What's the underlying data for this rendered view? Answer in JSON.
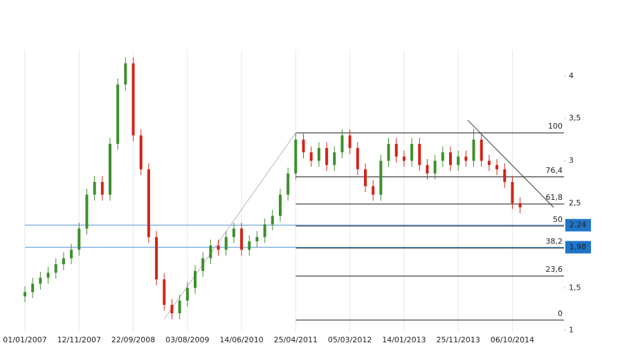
{
  "chart_data": {
    "type": "candlestick",
    "x": [
      0,
      45,
      90,
      135,
      180,
      225,
      270,
      315,
      360,
      405,
      450,
      495,
      540,
      585,
      630,
      675,
      720,
      765,
      810,
      855,
      900,
      945,
      990,
      1035,
      1080,
      1125,
      1170,
      1215,
      1260,
      1305,
      1350,
      1395,
      1440,
      1485,
      1530,
      1575,
      1620,
      1665,
      1710,
      1755,
      1800,
      1845,
      1890,
      1935,
      1980,
      2025,
      2070,
      2115,
      2160,
      2205,
      2250,
      2295,
      2340,
      2385,
      2430,
      2475,
      2520,
      2565,
      2610,
      2655,
      2700,
      2745,
      2790,
      2835,
      2880
    ],
    "open": [
      1.4,
      1.45,
      1.55,
      1.62,
      1.68,
      1.78,
      1.85,
      1.95,
      2.2,
      2.6,
      2.75,
      2.6,
      3.2,
      3.9,
      4.15,
      3.3,
      2.9,
      2.1,
      1.6,
      1.3,
      1.2,
      1.35,
      1.5,
      1.7,
      1.85,
      2.0,
      1.95,
      2.1,
      2.2,
      1.95,
      2.05,
      2.1,
      2.25,
      2.35,
      2.6,
      2.85,
      3.25,
      3.1,
      3.0,
      3.15,
      2.95,
      3.1,
      3.3,
      3.15,
      2.9,
      2.7,
      2.6,
      3.0,
      3.2,
      3.05,
      3.0,
      3.2,
      2.95,
      2.85,
      3.0,
      3.1,
      2.95,
      3.05,
      3.0,
      3.25,
      3.0,
      2.95,
      2.9,
      2.75,
      2.5
    ],
    "high": [
      1.52,
      1.62,
      1.69,
      1.75,
      1.85,
      1.92,
      2.02,
      2.27,
      2.67,
      2.82,
      2.82,
      3.27,
      3.97,
      4.22,
      4.22,
      3.37,
      2.97,
      2.17,
      1.67,
      1.37,
      1.42,
      1.57,
      1.77,
      1.92,
      2.07,
      2.07,
      2.17,
      2.27,
      2.27,
      2.12,
      2.17,
      2.32,
      2.42,
      2.67,
      2.92,
      3.32,
      3.32,
      3.17,
      3.22,
      3.22,
      3.17,
      3.37,
      3.37,
      3.22,
      2.97,
      2.77,
      3.07,
      3.27,
      3.27,
      3.12,
      3.27,
      3.27,
      3.02,
      3.07,
      3.17,
      3.17,
      3.12,
      3.12,
      3.38,
      3.32,
      3.07,
      3.02,
      2.97,
      2.82,
      2.57
    ],
    "low": [
      1.33,
      1.38,
      1.48,
      1.55,
      1.61,
      1.71,
      1.78,
      1.88,
      2.13,
      2.53,
      2.53,
      2.53,
      3.13,
      3.83,
      3.23,
      2.83,
      2.03,
      1.53,
      1.23,
      1.13,
      1.13,
      1.28,
      1.43,
      1.63,
      1.78,
      1.88,
      1.88,
      2.03,
      1.88,
      1.88,
      1.98,
      2.03,
      2.18,
      2.28,
      2.53,
      2.78,
      3.03,
      2.93,
      2.93,
      2.88,
      2.88,
      3.03,
      3.08,
      2.83,
      2.63,
      2.53,
      2.53,
      2.93,
      2.98,
      2.93,
      2.93,
      2.88,
      2.78,
      2.78,
      2.93,
      2.88,
      2.88,
      2.93,
      2.93,
      2.93,
      2.88,
      2.83,
      2.68,
      2.43,
      2.38
    ],
    "close": [
      1.45,
      1.55,
      1.62,
      1.68,
      1.78,
      1.85,
      1.95,
      2.2,
      2.6,
      2.75,
      2.6,
      3.2,
      3.9,
      4.15,
      3.3,
      2.9,
      2.1,
      1.6,
      1.3,
      1.2,
      1.35,
      1.5,
      1.7,
      1.85,
      2.0,
      1.95,
      2.1,
      2.2,
      1.95,
      2.05,
      2.1,
      2.25,
      2.35,
      2.6,
      2.85,
      3.25,
      3.1,
      3.0,
      3.15,
      2.95,
      3.1,
      3.3,
      3.15,
      2.9,
      2.7,
      2.6,
      3.0,
      3.2,
      3.05,
      3.0,
      3.2,
      2.95,
      2.85,
      3.0,
      3.1,
      2.95,
      3.05,
      3.0,
      3.25,
      3.0,
      2.95,
      2.9,
      2.75,
      2.5,
      2.45
    ],
    "up_color": "#3d8f2c",
    "down_color": "#d42318",
    "xlim": [
      0,
      3135
    ],
    "xticks": [
      {
        "value": 0,
        "label": "01/01/2007"
      },
      {
        "value": 315,
        "label": "12/11/2007"
      },
      {
        "value": 630,
        "label": "22/09/2008"
      },
      {
        "value": 945,
        "label": "03/08/2009"
      },
      {
        "value": 1260,
        "label": "14/06/2010"
      },
      {
        "value": 1575,
        "label": "25/04/2011"
      },
      {
        "value": 1890,
        "label": "05/03/2012"
      },
      {
        "value": 2205,
        "label": "14/01/2013"
      },
      {
        "value": 2520,
        "label": "25/11/2013"
      },
      {
        "value": 2835,
        "label": "06/10/2014"
      }
    ],
    "ylim": [
      0.98,
      4.31
    ],
    "yticks": [
      1,
      {
        "value": 1.5,
        "label": "1,5"
      },
      {
        "value": 2.5,
        "label": "2,5"
      },
      3,
      {
        "value": 3.5,
        "label": "3,5"
      },
      4
    ],
    "grid": true,
    "fib_levels": [
      {
        "value": 3.33,
        "label": "100"
      },
      {
        "value": 2.81,
        "label": "76,4"
      },
      {
        "value": 2.49,
        "label": "61,8"
      },
      {
        "value": 2.23,
        "label": "50"
      },
      {
        "value": 1.97,
        "label": "38,2"
      },
      {
        "value": 1.64,
        "label": "23,6"
      },
      {
        "value": 1.12,
        "label": "0"
      }
    ],
    "price_lines": [
      {
        "value": 2.24,
        "color": "#1f75c9"
      },
      {
        "value": 1.98,
        "color": "#1f75c9"
      }
    ],
    "trend_lines": [
      {
        "x": [
          810,
          1575
        ],
        "y": [
          1.13,
          3.33
        ],
        "color": "#b8b8b8"
      },
      {
        "x": [
          2575,
          3075
        ],
        "y": [
          3.48,
          2.45
        ],
        "color": "#333333"
      }
    ]
  }
}
